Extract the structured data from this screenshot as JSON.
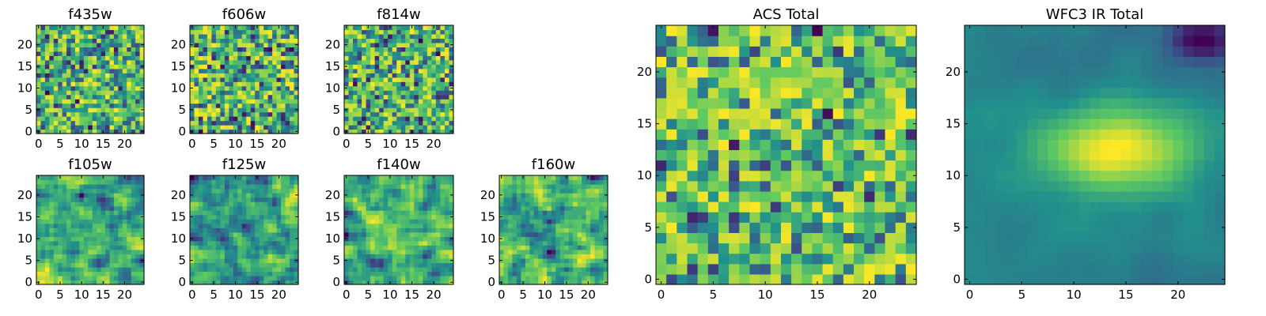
{
  "chart_data": [
    {
      "type": "heatmap",
      "title": "f435w",
      "xticks": [
        0,
        5,
        10,
        15,
        20
      ],
      "yticks": [
        0,
        5,
        10,
        15,
        20
      ],
      "grid": false
    },
    {
      "type": "heatmap",
      "title": "f606w",
      "xticks": [
        0,
        5,
        10,
        15,
        20
      ],
      "yticks": [
        0,
        5,
        10,
        15,
        20
      ],
      "grid": false
    },
    {
      "type": "heatmap",
      "title": "f814w",
      "xticks": [
        0,
        5,
        10,
        15,
        20
      ],
      "yticks": [
        0,
        5,
        10,
        15,
        20
      ],
      "grid": false
    },
    {
      "type": "heatmap",
      "title": "f105w",
      "xticks": [
        0,
        5,
        10,
        15,
        20
      ],
      "yticks": [
        0,
        5,
        10,
        15,
        20
      ],
      "grid": false
    },
    {
      "type": "heatmap",
      "title": "f125w",
      "xticks": [
        0,
        5,
        10,
        15,
        20
      ],
      "yticks": [
        0,
        5,
        10,
        15,
        20
      ],
      "grid": false
    },
    {
      "type": "heatmap",
      "title": "f140w",
      "xticks": [
        0,
        5,
        10,
        15,
        20
      ],
      "yticks": [
        0,
        5,
        10,
        15,
        20
      ],
      "grid": false
    },
    {
      "type": "heatmap",
      "title": "f160w",
      "xticks": [
        0,
        5,
        10,
        15,
        20
      ],
      "yticks": [
        0,
        5,
        10,
        15,
        20
      ],
      "grid": false
    },
    {
      "type": "heatmap",
      "title": "ACS Total",
      "xticks": [
        0,
        5,
        10,
        15,
        20
      ],
      "yticks": [
        0,
        5,
        10,
        15,
        20
      ],
      "grid": false
    },
    {
      "type": "heatmap",
      "title": "WFC3 IR Total",
      "xticks": [
        0,
        5,
        10,
        15,
        20
      ],
      "yticks": [
        0,
        5,
        10,
        15,
        20
      ],
      "grid": false
    }
  ],
  "colormap": [
    "#440154",
    "#3b528b",
    "#21918c",
    "#5ec962",
    "#fde725"
  ],
  "grid_size": 25
}
